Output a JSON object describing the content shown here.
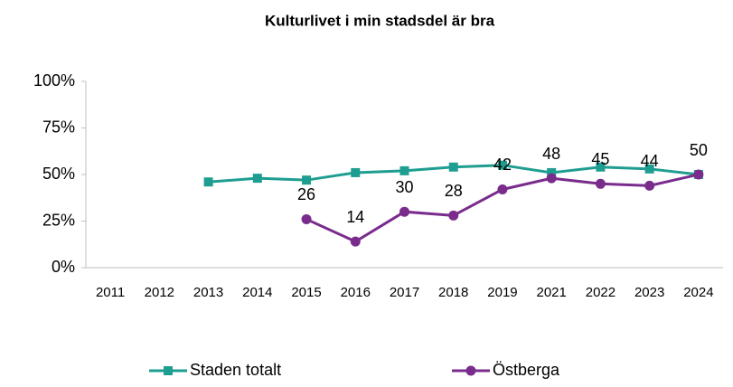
{
  "chart_data": {
    "type": "line",
    "title": "Kulturlivet i min stadsdel är bra",
    "categories": [
      "2011",
      "2012",
      "2013",
      "2014",
      "2015",
      "2016",
      "2017",
      "2018",
      "2019",
      "2021",
      "2022",
      "2023",
      "2024"
    ],
    "series": [
      {
        "name": "Staden totalt",
        "color": "#1e9e90",
        "marker": "square",
        "values": [
          null,
          null,
          46,
          48,
          47,
          51,
          52,
          54,
          55,
          51,
          54,
          53,
          50
        ]
      },
      {
        "name": "Östberga",
        "color": "#7a2c8c",
        "marker": "circle",
        "data_labels": true,
        "values": [
          null,
          null,
          null,
          null,
          26,
          14,
          30,
          28,
          42,
          48,
          45,
          44,
          50
        ]
      }
    ],
    "ylim": [
      0,
      100
    ],
    "yticks": [
      {
        "value": 0,
        "label": "0%"
      },
      {
        "value": 25,
        "label": "25%"
      },
      {
        "value": 50,
        "label": "50%"
      },
      {
        "value": 75,
        "label": "75%"
      },
      {
        "value": 100,
        "label": "100%"
      }
    ],
    "grid": false,
    "legend": "bottom"
  }
}
